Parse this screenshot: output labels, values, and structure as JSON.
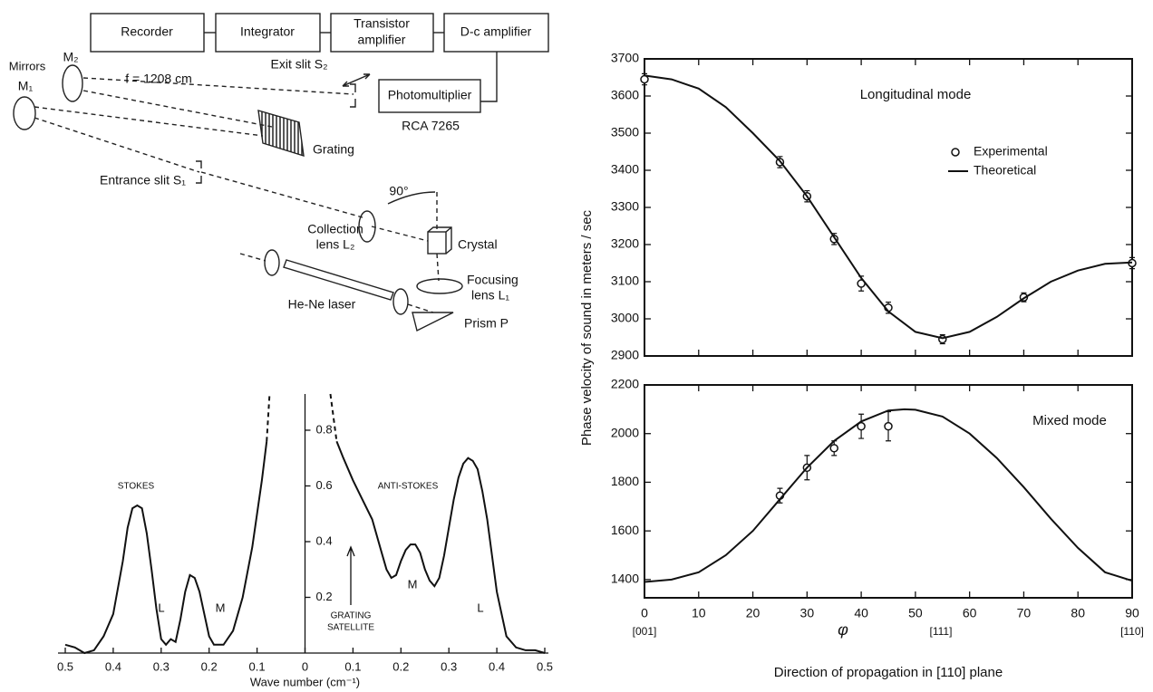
{
  "diagram": {
    "recorder": "Recorder",
    "integrator": "Integrator",
    "transistor_amplifier": [
      "Transistor",
      "amplifier"
    ],
    "dc_amplifier": "D-c amplifier",
    "photomultiplier": "Photomultiplier",
    "rca": "RCA 7265",
    "mirrors": "Mirrors",
    "m1": "M₁",
    "m2": "M₂",
    "focal": "f = 1208 cm",
    "exit_slit": "Exit slit S₂",
    "grating": "Grating",
    "entrance_slit": "Entrance slit S₁",
    "angle": "90°",
    "collection_lens": [
      "Collection",
      "lens L₂"
    ],
    "crystal": "Crystal",
    "focusing_lens": [
      "Focusing",
      "lens L₁"
    ],
    "laser": "He-Ne laser",
    "prism": "Prism P"
  },
  "chart_data": [
    {
      "type": "line",
      "xlabel": "Wave number (cm⁻¹)",
      "xlim": [
        -0.5,
        0.5
      ],
      "ylim": [
        0,
        0.93
      ],
      "xticks": [
        {
          "value": -0.5,
          "label": "0.5"
        },
        {
          "value": -0.4,
          "label": "0.4"
        },
        {
          "value": -0.3,
          "label": "0.3"
        },
        {
          "value": -0.2,
          "label": "0.2"
        },
        {
          "value": -0.1,
          "label": "0.1"
        },
        0,
        0.1,
        0.2,
        0.3,
        0.4,
        0.5
      ],
      "yticks": [
        0.2,
        0.4,
        0.6,
        0.8
      ],
      "annotations": [
        "STOKES",
        "ANTI-STOKES",
        "L",
        "M",
        "M",
        "L",
        "GRATING",
        "SATELLITE"
      ],
      "series": [
        {
          "color": "#111",
          "x": [
            -0.5,
            -0.48,
            -0.46,
            -0.44,
            -0.42,
            -0.4,
            -0.38,
            -0.37,
            -0.36,
            -0.35,
            -0.34,
            -0.33,
            -0.32,
            -0.31,
            -0.3,
            -0.29,
            -0.28,
            -0.27,
            -0.26,
            -0.25,
            -0.24,
            -0.23,
            -0.22,
            -0.21,
            -0.2,
            -0.19,
            -0.17,
            -0.15,
            -0.13,
            -0.11,
            -0.1,
            -0.09,
            -0.08
          ],
          "values": [
            0.03,
            0.02,
            0,
            0.01,
            0.06,
            0.14,
            0.33,
            0.45,
            0.52,
            0.53,
            0.52,
            0.43,
            0.3,
            0.16,
            0.05,
            0.03,
            0.05,
            0.04,
            0.12,
            0.22,
            0.28,
            0.27,
            0.22,
            0.14,
            0.06,
            0.03,
            0.03,
            0.08,
            0.2,
            0.38,
            0.5,
            0.62,
            0.76
          ]
        },
        {
          "color": "#111",
          "x": [
            0.066,
            0.08,
            0.1,
            0.12,
            0.14,
            0.16,
            0.17,
            0.18,
            0.19,
            0.2,
            0.21,
            0.22,
            0.23,
            0.24,
            0.25,
            0.26,
            0.27,
            0.28,
            0.29,
            0.3,
            0.31,
            0.32,
            0.33,
            0.34,
            0.35,
            0.36,
            0.37,
            0.38,
            0.39,
            0.4,
            0.42,
            0.44,
            0.46,
            0.48,
            0.5
          ],
          "values": [
            0.76,
            0.7,
            0.62,
            0.55,
            0.48,
            0.36,
            0.3,
            0.27,
            0.28,
            0.33,
            0.37,
            0.39,
            0.39,
            0.36,
            0.3,
            0.26,
            0.24,
            0.27,
            0.35,
            0.45,
            0.55,
            0.63,
            0.68,
            0.7,
            0.69,
            0.66,
            0.58,
            0.48,
            0.35,
            0.22,
            0.06,
            0.02,
            0.01,
            0.01,
            0
          ]
        },
        {
          "color": "#111",
          "dashed": true,
          "x": [
            -0.08,
            -0.074
          ],
          "values": [
            0.76,
            0.93
          ]
        },
        {
          "color": "#111",
          "dashed": true,
          "x": [
            0.053,
            0.066
          ],
          "values": [
            0.93,
            0.76
          ]
        }
      ]
    },
    {
      "type": "scatter",
      "panel_label": "Longitudinal mode",
      "ylabel": "Phase velocity of sound in meters / sec",
      "xlim": [
        0,
        90
      ],
      "ylim": [
        2900,
        3700
      ],
      "xticks": [
        0,
        10,
        20,
        30,
        40,
        50,
        60,
        70,
        80,
        90
      ],
      "xticklabels": false,
      "yticks": [
        2900,
        3000,
        3100,
        3200,
        3300,
        3400,
        3500,
        3600,
        3700
      ],
      "legend": "upper right",
      "series": [
        {
          "name": "Experimental",
          "kind": "scatter",
          "color": "#111",
          "x": [
            0,
            25,
            30,
            35,
            40,
            45,
            55,
            70,
            90
          ],
          "values": [
            3645,
            3422,
            3330,
            3215,
            3095,
            3030,
            2945,
            3058,
            3150
          ],
          "errors": [
            15,
            15,
            15,
            15,
            20,
            15,
            12,
            12,
            15
          ]
        },
        {
          "name": "Theoretical",
          "kind": "line",
          "color": "#111",
          "x": [
            0,
            5,
            10,
            15,
            20,
            25,
            30,
            35,
            40,
            45,
            50,
            55,
            60,
            65,
            70,
            75,
            80,
            85,
            90
          ],
          "values": [
            3655,
            3645,
            3620,
            3570,
            3500,
            3425,
            3330,
            3220,
            3110,
            3020,
            2965,
            2948,
            2965,
            3005,
            3055,
            3100,
            3130,
            3148,
            3152
          ]
        }
      ]
    },
    {
      "type": "scatter",
      "panel_label": "Mixed mode",
      "xlabel": "Direction of propagation in [110] plane",
      "xsymbol": "φ",
      "direction_labels": [
        {
          "value": 0,
          "label": "[001]"
        },
        {
          "value": 54.7,
          "label": "[111]"
        },
        {
          "value": 90,
          "label": "[110]"
        }
      ],
      "xlim": [
        0,
        90
      ],
      "ylim": [
        1325,
        2200
      ],
      "xticks": [
        0,
        10,
        20,
        30,
        40,
        50,
        60,
        70,
        80,
        90
      ],
      "yticks": [
        1400,
        1600,
        1800,
        2000,
        2200
      ],
      "series": [
        {
          "kind": "scatter",
          "color": "#111",
          "x": [
            25,
            30,
            35,
            40,
            45
          ],
          "values": [
            1745,
            1860,
            1940,
            2030,
            2030
          ],
          "errors": [
            30,
            50,
            30,
            50,
            60
          ]
        },
        {
          "kind": "line",
          "color": "#111",
          "x": [
            0,
            5,
            10,
            15,
            20,
            25,
            30,
            35,
            40,
            45,
            48,
            50,
            55,
            60,
            65,
            70,
            75,
            80,
            85,
            90
          ],
          "values": [
            1390,
            1400,
            1430,
            1500,
            1600,
            1730,
            1860,
            1970,
            2050,
            2095,
            2100,
            2098,
            2070,
            2000,
            1900,
            1780,
            1650,
            1530,
            1430,
            1395
          ]
        }
      ]
    }
  ]
}
